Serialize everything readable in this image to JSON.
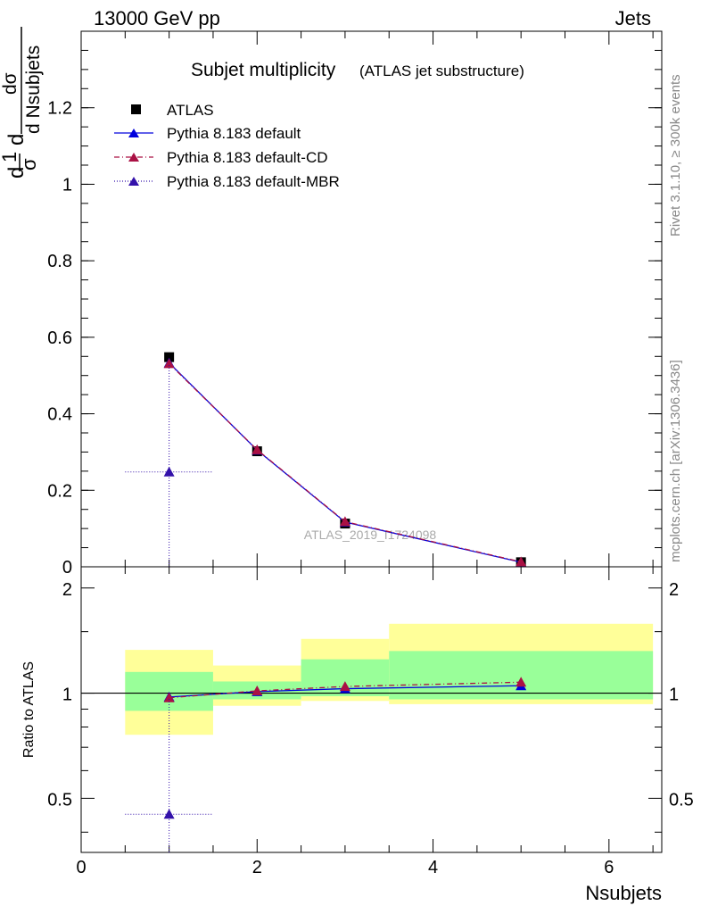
{
  "header": {
    "left": "13000 GeV pp",
    "right": "Jets"
  },
  "side_labels": {
    "rivet": "Rivet 3.1.10, ≥ 300k events",
    "mcplots": "mcplots.cern.ch [arXiv:1306.3436]"
  },
  "chart_data": [
    {
      "type": "scatter",
      "title": "Subjet multiplicity",
      "subtitle": "(ATLAS jet substructure)",
      "xlabel": "Nsubjets",
      "ylabel_numerator": "dσ",
      "ylabel_denominator": "d Nsubjets",
      "ylabel_prefix_numerator": "1",
      "ylabel_prefix_denominator": "σ",
      "ylabel_d": "d",
      "watermark": "ATLAS_2019_I1724098",
      "xlim": [
        0,
        6.6
      ],
      "ylim": [
        0,
        1.4
      ],
      "xticks": [
        0,
        2,
        4,
        6
      ],
      "yticks": [
        0,
        0.2,
        0.4,
        0.6,
        0.8,
        1,
        1.2
      ],
      "ytick_labels": [
        "0",
        "0.2",
        "0.4",
        "0.6",
        "0.8",
        "1",
        "1.2"
      ],
      "legend_position": "top-left",
      "series": [
        {
          "name": "ATLAS",
          "marker": "square",
          "color": "#000000",
          "line": "none",
          "x": [
            1,
            2,
            3,
            5
          ],
          "y": [
            0.548,
            0.302,
            0.113,
            0.012
          ]
        },
        {
          "name": "Pythia 8.183 default",
          "marker": "triangle",
          "color": "#0000dd",
          "line": "solid",
          "x": [
            1,
            2,
            3,
            5
          ],
          "y": [
            0.533,
            0.305,
            0.117,
            0.012
          ]
        },
        {
          "name": "Pythia 8.183 default-CD",
          "marker": "triangle",
          "color": "#aa1144",
          "line": "dashdot",
          "x": [
            1,
            2,
            3,
            5
          ],
          "y": [
            0.531,
            0.306,
            0.118,
            0.013
          ]
        },
        {
          "name": "Pythia 8.183 default-MBR",
          "marker": "triangle",
          "color": "#3311aa",
          "line": "dotted",
          "x": [
            1
          ],
          "y": [
            0.248
          ],
          "yerr": [
            [
              0.248,
              0.282
            ]
          ],
          "xerr": [
            0.5
          ]
        }
      ]
    },
    {
      "type": "scatter",
      "ylabel": "Ratio to ATLAS",
      "xlabel": "Nsubjets",
      "xlim": [
        0,
        6.6
      ],
      "ylim": [
        0.35,
        2.3
      ],
      "xticks": [
        0,
        2,
        4,
        6
      ],
      "xtick_labels": [
        "0",
        "2",
        "4",
        "6"
      ],
      "yticks": [
        0.5,
        1,
        2
      ],
      "ytick_labels": [
        "0.5",
        "1",
        "2"
      ],
      "reference_line": 1,
      "bands": [
        {
          "x0": 0.5,
          "x1": 1.5,
          "yellow": [
            0.76,
            1.33
          ],
          "green": [
            0.89,
            1.15
          ]
        },
        {
          "x0": 1.5,
          "x1": 2.5,
          "yellow": [
            0.92,
            1.2
          ],
          "green": [
            0.96,
            1.08
          ]
        },
        {
          "x0": 2.5,
          "x1": 3.5,
          "yellow": [
            0.95,
            1.43
          ],
          "green": [
            0.98,
            1.25
          ]
        },
        {
          "x0": 3.5,
          "x1": 6.5,
          "yellow": [
            0.93,
            1.58
          ],
          "green": [
            0.96,
            1.32
          ]
        }
      ],
      "series": [
        {
          "name": "Pythia 8.183 default",
          "color": "#0000dd",
          "line": "solid",
          "x": [
            1,
            2,
            3,
            5
          ],
          "y": [
            0.975,
            1.01,
            1.03,
            1.05
          ]
        },
        {
          "name": "Pythia 8.183 default-CD",
          "color": "#aa1144",
          "line": "dashdot",
          "x": [
            1,
            2,
            3,
            5
          ],
          "y": [
            0.97,
            1.015,
            1.045,
            1.075
          ],
          "yerr": [
            [
              0,
              0
            ],
            [
              0,
              0
            ],
            [
              0.02,
              0.02
            ],
            [
              0.03,
              0.03
            ]
          ]
        },
        {
          "name": "Pythia 8.183 default-MBR",
          "color": "#3311aa",
          "line": "dotted",
          "x": [
            1
          ],
          "y": [
            0.45
          ],
          "yerr": [
            [
              0.1,
              0.52
            ]
          ],
          "xerr": [
            0.5
          ]
        }
      ]
    }
  ]
}
